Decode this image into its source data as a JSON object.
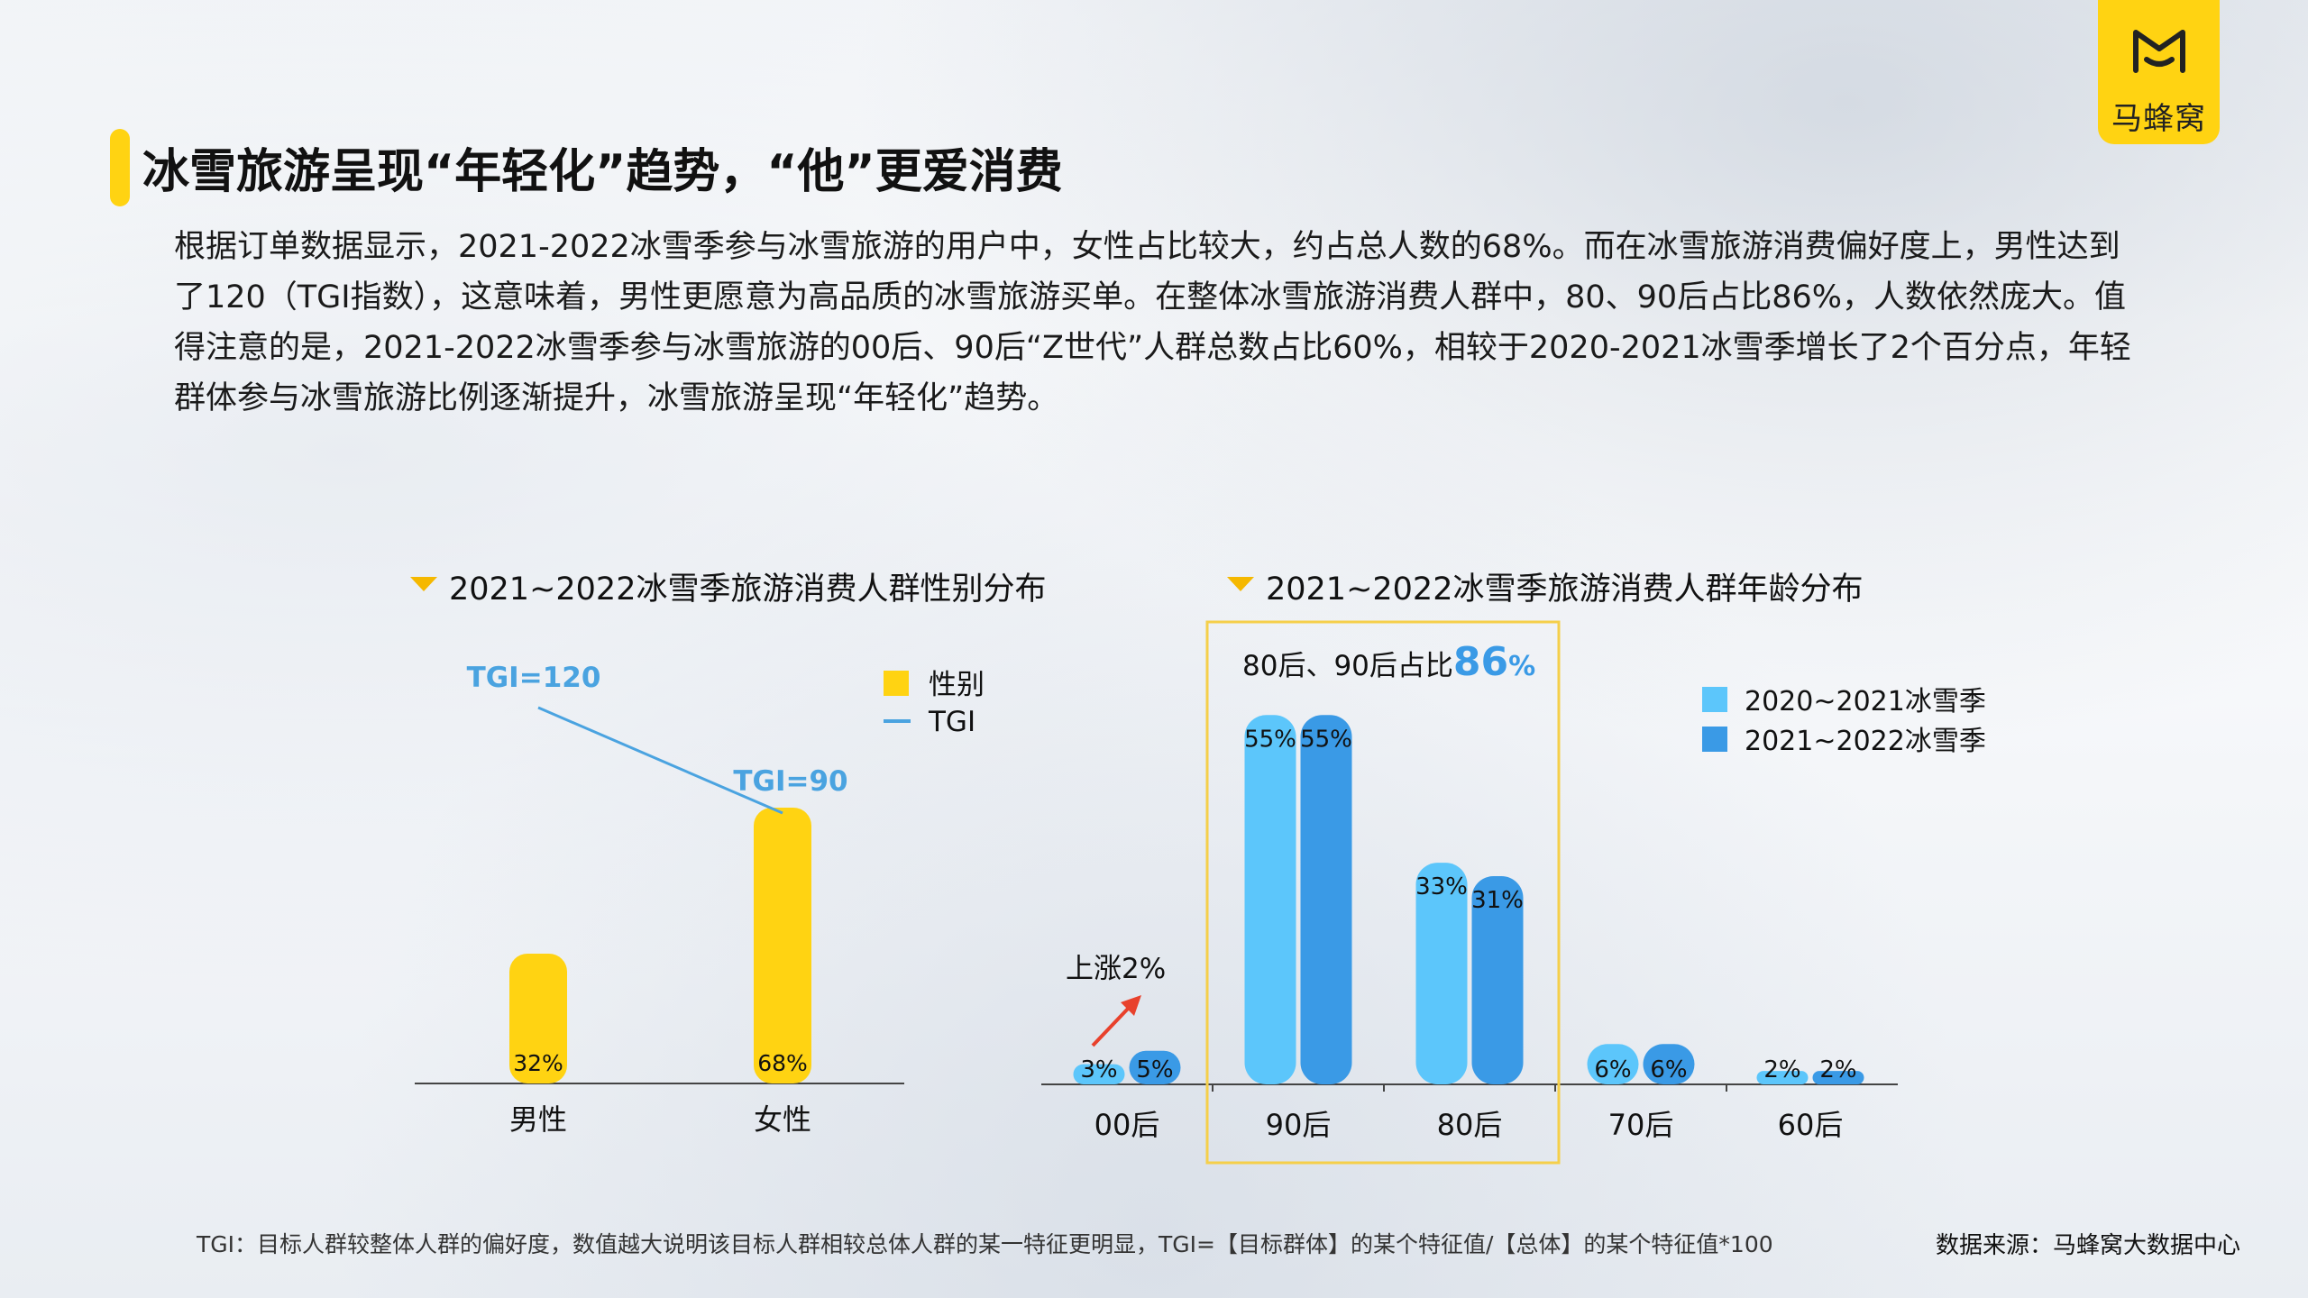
{
  "logo": {
    "text": "马蜂窝"
  },
  "title": "冰雪旅游呈现“年轻化”趋势，“他”更爱消费",
  "description": "根据订单数据显示，2021-2022冰雪季参与冰雪旅游的用户中，女性占比较大，约占总人数的68%。而在冰雪旅游消费偏好度上，男性达到了120（TGI指数），这意味着，男性更愿意为高品质的冰雪旅游买单。在整体冰雪旅游消费人群中，80、90后占比86%，人数依然庞大。值得注意的是，2021-2022冰雪季参与冰雪旅游的00后、90后“Z世代”人群总数占比60%，相较于2020-2021冰雪季增长了2个百分点，年轻群体参与冰雪旅游比例逐渐提升，冰雪旅游呈现“年轻化”趋势。",
  "colors": {
    "yellow": "#ffd312",
    "light_blue": "#5cc6fb",
    "dark_blue": "#3a9ae6",
    "tgi_line": "#4aa3e0",
    "highlight_box": "#f5cf4a",
    "arrow": "#e8412c"
  },
  "footnote": "TGI：目标人群较整体人群的偏好度，数值越大说明该目标人群相较总体人群的某一特征更明显，TGI=【目标群体】的某个特征值/【总体】的某个特征值*100",
  "source": "数据来源：马蜂窝大数据中心",
  "chart_data": [
    {
      "type": "bar",
      "title": "2021~2022冰雪季旅游消费人群性别分布",
      "categories": [
        "男性",
        "女性"
      ],
      "series": [
        {
          "name": "性别",
          "values": [
            32,
            68
          ],
          "labels": [
            "32%",
            "68%"
          ]
        }
      ],
      "line_series": {
        "name": "TGI",
        "values": [
          120,
          90
        ],
        "labels": [
          "TGI=120",
          "TGI=90"
        ]
      },
      "legend_position": "top-right",
      "grid": false
    },
    {
      "type": "bar",
      "title": "2021~2022冰雪季旅游消费人群年龄分布",
      "categories": [
        "00后",
        "90后",
        "80后",
        "70后",
        "60后"
      ],
      "series": [
        {
          "name": "2020~2021冰雪季",
          "values": [
            3,
            55,
            33,
            6,
            2
          ],
          "labels": [
            "3%",
            "55%",
            "33%",
            "6%",
            "2%"
          ]
        },
        {
          "name": "2021~2022冰雪季",
          "values": [
            5,
            55,
            31,
            6,
            2
          ],
          "labels": [
            "5%",
            "55%",
            "31%",
            "6%",
            "2%"
          ]
        }
      ],
      "highlight": {
        "categories": [
          "90后",
          "80后"
        ],
        "text": "80后、90后占比",
        "value": "86",
        "unit": "%"
      },
      "annotation": "上涨2%",
      "legend_position": "top-right",
      "grid": false
    }
  ]
}
